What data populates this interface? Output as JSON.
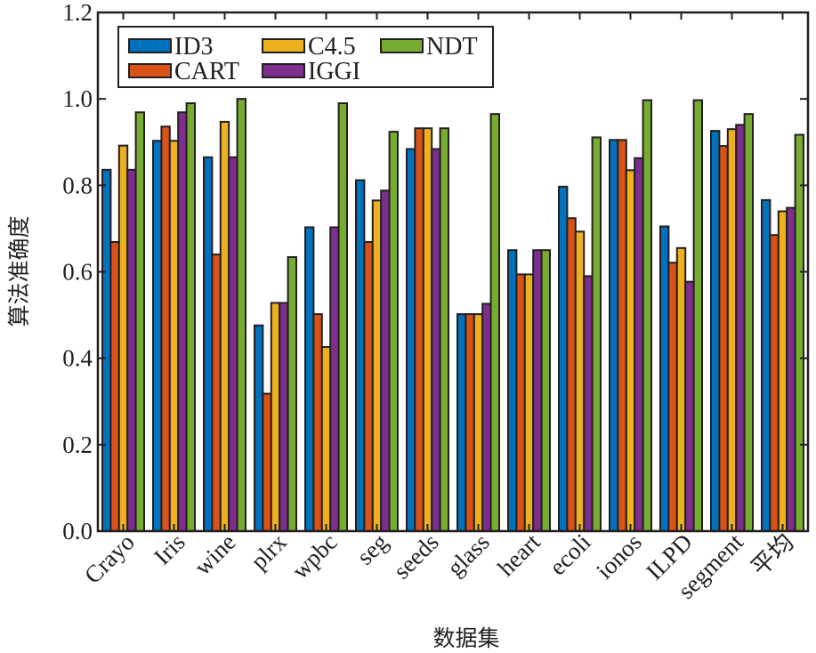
{
  "chart_data": {
    "type": "bar",
    "title": "",
    "xlabel": "数据集",
    "ylabel": "算法准确度",
    "ylim": [
      0,
      1.2
    ],
    "yticks": [
      0.0,
      0.2,
      0.4,
      0.6,
      0.8,
      1.0,
      1.2
    ],
    "ytick_labels": [
      "0.0",
      "0.2",
      "0.4",
      "0.6",
      "0.8",
      "1.0",
      "1.2"
    ],
    "grid": false,
    "legend_position": "top-left",
    "categories": [
      "Crayo",
      "Iris",
      "wine",
      "plrx",
      "wpbc",
      "seg",
      "seeds",
      "glass",
      "heart",
      "ecoli",
      "ionos",
      "ILPD",
      "segment",
      "平均"
    ],
    "series": [
      {
        "name": "ID3",
        "color": "#0072BD",
        "values": [
          0.836,
          0.903,
          0.865,
          0.476,
          0.703,
          0.812,
          0.884,
          0.502,
          0.65,
          0.797,
          0.905,
          0.705,
          0.926,
          0.766
        ]
      },
      {
        "name": "CART",
        "color": "#D95319",
        "values": [
          0.669,
          0.936,
          0.64,
          0.318,
          0.502,
          0.669,
          0.932,
          0.502,
          0.594,
          0.724,
          0.905,
          0.621,
          0.891,
          0.685
        ]
      },
      {
        "name": "C4.5",
        "color": "#EDB120",
        "values": [
          0.892,
          0.903,
          0.947,
          0.528,
          0.426,
          0.765,
          0.932,
          0.502,
          0.594,
          0.693,
          0.835,
          0.655,
          0.93,
          0.74
        ]
      },
      {
        "name": "IGGI",
        "color": "#7E2F8E",
        "values": [
          0.836,
          0.969,
          0.865,
          0.528,
          0.703,
          0.788,
          0.884,
          0.526,
          0.65,
          0.59,
          0.863,
          0.577,
          0.94,
          0.748
        ]
      },
      {
        "name": "NDT",
        "color": "#77AC30",
        "values": [
          0.969,
          0.99,
          1.0,
          0.634,
          0.99,
          0.924,
          0.932,
          0.965,
          0.65,
          0.911,
          0.997,
          0.997,
          0.965,
          0.917
        ]
      }
    ],
    "legend": {
      "entries": [
        {
          "label": "ID3",
          "series": 0
        },
        {
          "label": "C4.5",
          "series": 2
        },
        {
          "label": "NDT",
          "series": 4
        },
        {
          "label": "CART",
          "series": 1
        },
        {
          "label": "IGGI",
          "series": 3
        }
      ]
    }
  }
}
